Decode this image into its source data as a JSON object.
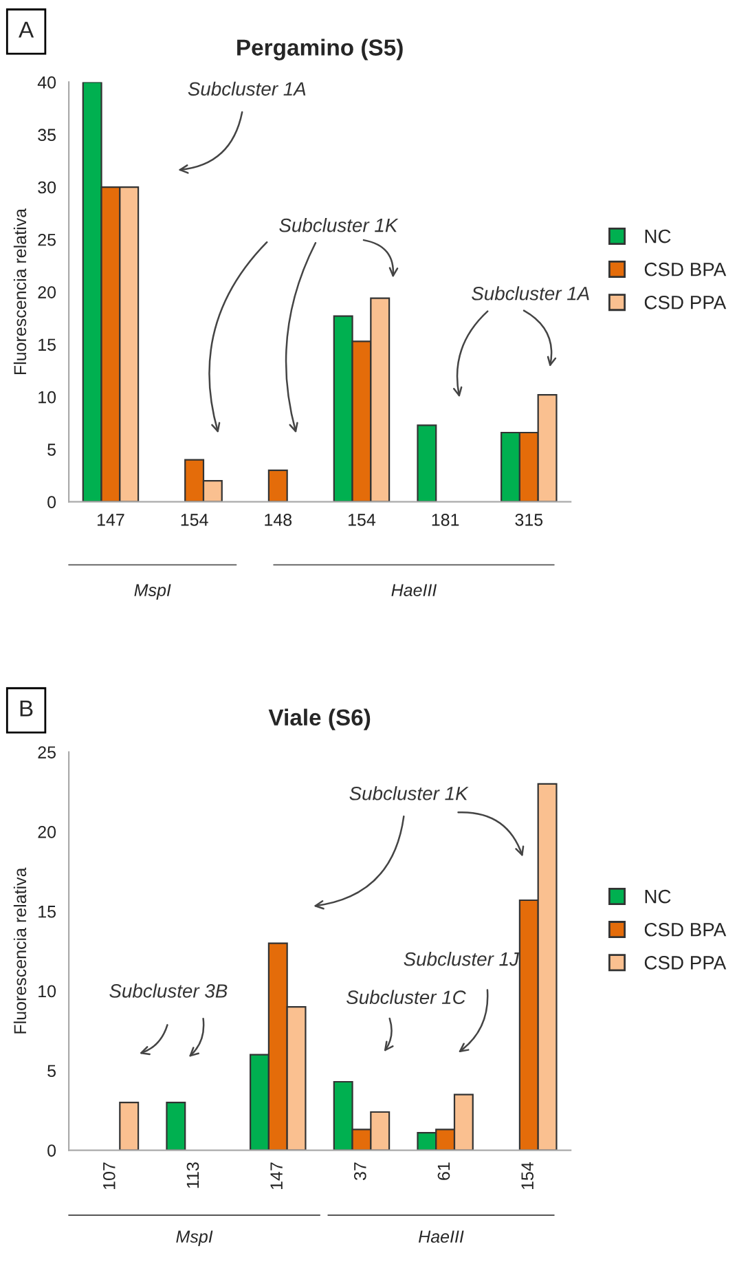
{
  "chart_data": [
    {
      "type": "bar",
      "title": "Pergamino (S5)",
      "ylabel": "Fluorescencia relativa",
      "categories": [
        "147",
        "154",
        "148",
        "154",
        "181",
        "315"
      ],
      "series": [
        {
          "name": "NC",
          "color": "#00b050",
          "values": [
            40,
            null,
            null,
            17.7,
            7.3,
            6.6
          ]
        },
        {
          "name": "CSD BPA",
          "color": "#e46c0a",
          "values": [
            30,
            4,
            3,
            15.3,
            null,
            6.6
          ]
        },
        {
          "name": "CSD PPA",
          "color": "#fac090",
          "values": [
            30,
            2,
            null,
            19.4,
            null,
            10.2
          ]
        }
      ],
      "ylim": [
        0,
        40
      ],
      "yticks": [
        0,
        5,
        10,
        15,
        20,
        25,
        30,
        35,
        40
      ],
      "grid": false,
      "legend": "right",
      "annotations": [
        "A",
        "Subcluster 1A",
        "Subcluster 1K",
        "Subcluster 1A",
        "MspI",
        "HaeIII"
      ]
    },
    {
      "type": "bar",
      "title": "Viale (S6)",
      "ylabel": "Fluorescencia relativa",
      "categories": [
        "107",
        "113",
        "147",
        "37",
        "61",
        "154"
      ],
      "series": [
        {
          "name": "NC",
          "color": "#00b050",
          "values": [
            null,
            3,
            6,
            4.3,
            1.1,
            null
          ]
        },
        {
          "name": "CSD BPA",
          "color": "#e46c0a",
          "values": [
            null,
            null,
            13,
            1.3,
            1.3,
            15.7
          ]
        },
        {
          "name": "CSD PPA",
          "color": "#fac090",
          "values": [
            3,
            null,
            9,
            2.4,
            3.5,
            23
          ]
        }
      ],
      "ylim": [
        0,
        25
      ],
      "yticks": [
        0,
        5,
        10,
        15,
        20,
        25
      ],
      "grid": false,
      "legend": "right",
      "annotations": [
        "B",
        "Subcluster 3B",
        "Subcluster 1K",
        "Subcluster 1C",
        "Subcluster 1J",
        "MspI",
        "HaeIII"
      ]
    }
  ]
}
